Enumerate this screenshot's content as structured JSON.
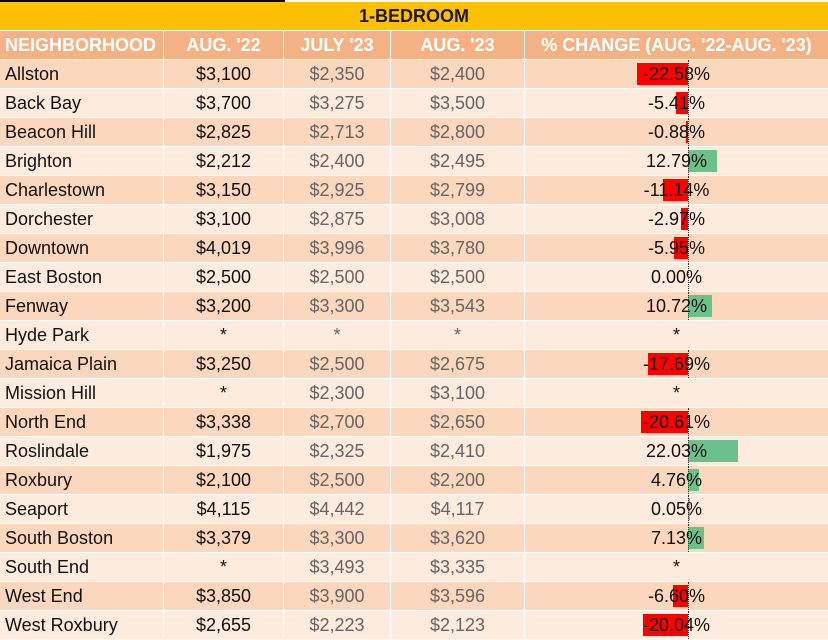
{
  "title": "1-BEDROOM",
  "colors": {
    "banner": "#FFC000",
    "header": "#F4B183",
    "row_dark": "#FBD7BD",
    "row_light": "#FDEBDD",
    "negative_bar": "#FF0000",
    "positive_bar": "#6CC18B"
  },
  "columns": [
    "NEIGHBORHOOD",
    "AUG. '22",
    "JULY '23",
    "AUG. '23",
    "% CHANGE (AUG. '22-AUG. '23)"
  ],
  "rows": [
    {
      "neighborhood": "Allston",
      "aug22": "$3,100",
      "jul23": "$2,350",
      "aug23": "$2,400",
      "change": "-22.58%",
      "change_value": -22.58
    },
    {
      "neighborhood": "Back Bay",
      "aug22": "$3,700",
      "jul23": "$3,275",
      "aug23": "$3,500",
      "change": "-5.41%",
      "change_value": -5.41
    },
    {
      "neighborhood": "Beacon Hill",
      "aug22": "$2,825",
      "jul23": "$2,713",
      "aug23": "$2,800",
      "change": "-0.88%",
      "change_value": -0.88
    },
    {
      "neighborhood": "Brighton",
      "aug22": "$2,212",
      "jul23": "$2,400",
      "aug23": "$2,495",
      "change": "12.79%",
      "change_value": 12.79
    },
    {
      "neighborhood": "Charlestown",
      "aug22": "$3,150",
      "jul23": "$2,925",
      "aug23": "$2,799",
      "change": "-11.14%",
      "change_value": -11.14
    },
    {
      "neighborhood": "Dorchester",
      "aug22": "$3,100",
      "jul23": "$2,875",
      "aug23": "$3,008",
      "change": "-2.97%",
      "change_value": -2.97
    },
    {
      "neighborhood": "Downtown",
      "aug22": "$4,019",
      "jul23": "$3,996",
      "aug23": "$3,780",
      "change": "-5.95%",
      "change_value": -5.95
    },
    {
      "neighborhood": "East Boston",
      "aug22": "$2,500",
      "jul23": "$2,500",
      "aug23": "$2,500",
      "change": "0.00%",
      "change_value": 0
    },
    {
      "neighborhood": "Fenway",
      "aug22": "$3,200",
      "jul23": "$3,300",
      "aug23": "$3,543",
      "change": "10.72%",
      "change_value": 10.72
    },
    {
      "neighborhood": "Hyde Park",
      "aug22": "*",
      "jul23": "*",
      "aug23": "*",
      "change": "*",
      "change_value": null
    },
    {
      "neighborhood": "Jamaica Plain",
      "aug22": "$3,250",
      "jul23": "$2,500",
      "aug23": "$2,675",
      "change": "-17.69%",
      "change_value": -17.69
    },
    {
      "neighborhood": "Mission Hill",
      "aug22": "*",
      "jul23": "$2,300",
      "aug23": "$3,100",
      "change": "*",
      "change_value": null
    },
    {
      "neighborhood": "North End",
      "aug22": "$3,338",
      "jul23": "$2,700",
      "aug23": "$2,650",
      "change": "-20.61%",
      "change_value": -20.61
    },
    {
      "neighborhood": "Roslindale",
      "aug22": "$1,975",
      "jul23": "$2,325",
      "aug23": "$2,410",
      "change": "22.03%",
      "change_value": 22.03
    },
    {
      "neighborhood": "Roxbury",
      "aug22": "$2,100",
      "jul23": "$2,500",
      "aug23": "$2,200",
      "change": "4.76%",
      "change_value": 4.76
    },
    {
      "neighborhood": "Seaport",
      "aug22": "$4,115",
      "jul23": "$4,442",
      "aug23": "$4,117",
      "change": "0.05%",
      "change_value": 0.05
    },
    {
      "neighborhood": "South Boston",
      "aug22": "$3,379",
      "jul23": "$3,300",
      "aug23": "$3,620",
      "change": "7.13%",
      "change_value": 7.13
    },
    {
      "neighborhood": "South End",
      "aug22": "*",
      "jul23": "$3,493",
      "aug23": "$3,335",
      "change": "*",
      "change_value": null
    },
    {
      "neighborhood": "West End",
      "aug22": "$3,850",
      "jul23": "$3,900",
      "aug23": "$3,596",
      "change": "-6.60%",
      "change_value": -6.6
    },
    {
      "neighborhood": "West Roxbury",
      "aug22": "$2,655",
      "jul23": "$2,223",
      "aug23": "$2,123",
      "change": "-20.04%",
      "change_value": -20.04
    }
  ]
}
